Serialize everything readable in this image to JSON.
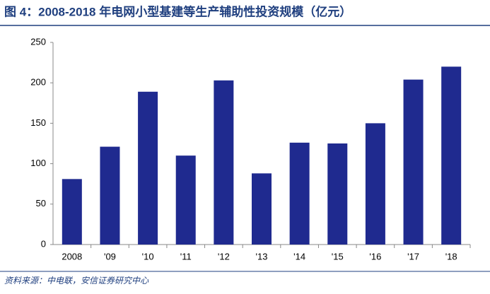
{
  "chart_data": {
    "type": "bar",
    "title": "图 4：2008-2018 年电网小型基建等生产辅助性投资规模（亿元）",
    "source": "资料来源：中电联，安信证券研究中心",
    "categories": [
      "2008",
      "'09",
      "'10",
      "'11",
      "'12",
      "'13",
      "'14",
      "'15",
      "'16",
      "'17",
      "'18"
    ],
    "values": [
      81,
      121,
      189,
      110,
      203,
      88,
      126,
      125,
      150,
      204,
      220
    ],
    "color": "#1f2a8f",
    "ylim": [
      0,
      250
    ],
    "yticks": [
      0,
      50,
      100,
      150,
      200,
      250
    ],
    "grid": false
  }
}
